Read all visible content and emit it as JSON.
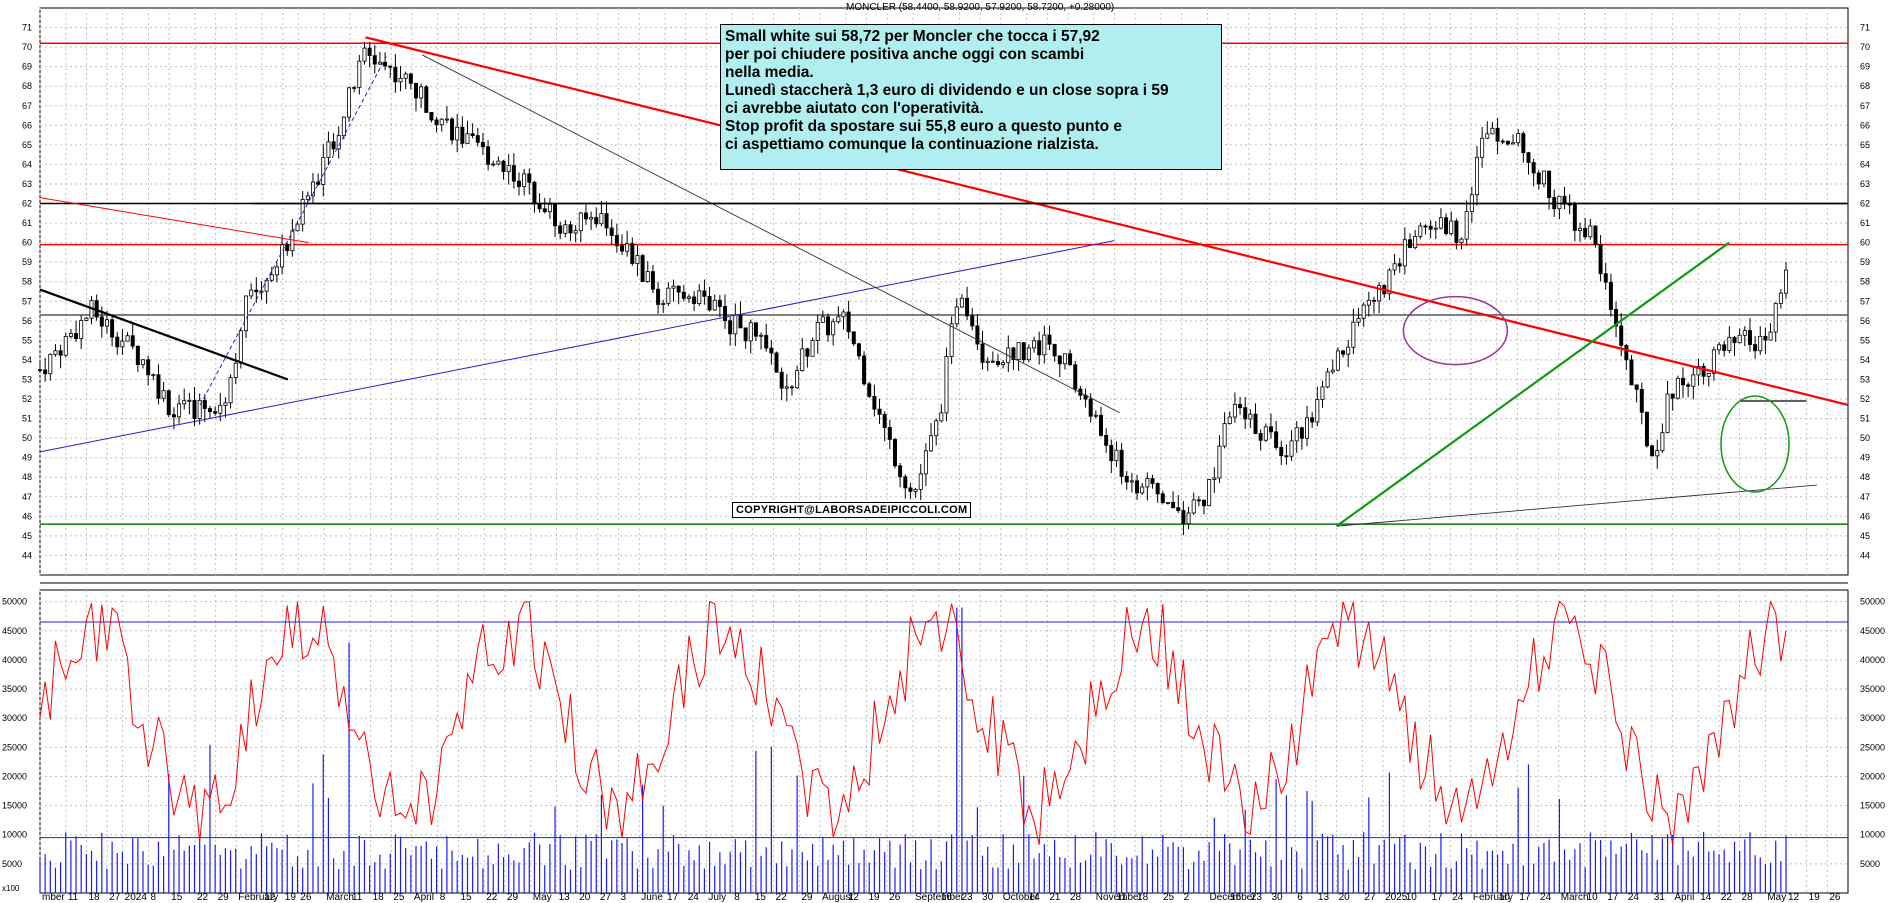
{
  "title": "MONCLER (58.4400, 58.9200, 57.9200, 58.7200, +0.28000)",
  "note_lines": [
    "Small white sui 58,72 per Moncler che tocca i 57,92",
    "per poi chiudere positiva anche oggi con scambi",
    "nella media.",
    "Lunedì staccherà 1,3 euro di dividendo e un close sopra i 59",
    "ci avrebbe aiutato con l'operatività.",
    "Stop profit da spostare sui 55,8 euro a questo punto e",
    "ci aspettiamo comunque la continuazione rialzista."
  ],
  "copyright": "COPYRIGHT@LABORSADEIPICCOLI.COM",
  "colors": {
    "up": "#ffffff",
    "down": "#000000",
    "volume": "#1a1aff",
    "oscillator": "#ff0000",
    "grid": "#c0c0c0"
  },
  "chart_data": {
    "type": "candlestick",
    "price_ylim": [
      43,
      72
    ],
    "price_ticks": [
      44,
      45,
      46,
      47,
      48,
      49,
      50,
      51,
      52,
      53,
      54,
      55,
      56,
      57,
      58,
      59,
      60,
      61,
      62,
      63,
      64,
      65,
      66,
      67,
      68,
      69,
      70,
      71
    ],
    "volume_ylim": [
      0,
      52000
    ],
    "volume_ticks": [
      5000,
      10000,
      15000,
      20000,
      25000,
      30000,
      35000,
      40000,
      45000,
      50000
    ],
    "volume_unit_label": "x100",
    "x_ticks": [
      "mber",
      "11",
      "18",
      "27",
      "2024",
      "8",
      "15",
      "22",
      "29",
      "February",
      "12",
      "19",
      "26",
      "March",
      "11",
      "18",
      "25",
      "April",
      "8",
      "15",
      "22",
      "29",
      "May",
      "13",
      "20",
      "27",
      "3",
      "June",
      "17",
      "24",
      "July",
      "8",
      "15",
      "22",
      "29",
      "August",
      "12",
      "19",
      "26",
      "September",
      "16",
      "23",
      "30",
      "October",
      "14",
      "21",
      "28",
      "November",
      "11",
      "18",
      "25",
      "2",
      "December",
      "16",
      "23",
      "30",
      "6",
      "13",
      "20",
      "27",
      "2025",
      "10",
      "17",
      "24",
      "February",
      "10",
      "17",
      "24",
      "March",
      "10",
      "17",
      "24",
      "31",
      "April",
      "14",
      "22",
      "28",
      "May",
      "12",
      "19",
      "26"
    ],
    "x_tick_positions": [
      0,
      0.5,
      0.9,
      1.3,
      1.6,
      2.1,
      2.5,
      3.0,
      3.4,
      3.8,
      4.3,
      4.7,
      5.0,
      5.5,
      6.0,
      6.4,
      6.8,
      7.2,
      7.7,
      8.1,
      8.6,
      9.0,
      9.5,
      10.0,
      10.4,
      10.8,
      11.2,
      11.6,
      12.1,
      12.5,
      12.9,
      13.4,
      13.8,
      14.2,
      14.7,
      15.1,
      15.6,
      16.0,
      16.4,
      16.9,
      17.4,
      17.8,
      18.2,
      18.6,
      19.1,
      19.5,
      19.9,
      20.4,
      20.8,
      21.2,
      21.7,
      22.1,
      22.6,
      23.0,
      23.4,
      23.8,
      24.3,
      24.7,
      25.1,
      25.6,
      26.0,
      26.4,
      26.9,
      27.3,
      27.7,
      28.2,
      28.6,
      29.0,
      29.4,
      29.9,
      30.3,
      30.7,
      31.2,
      31.6,
      32.1,
      32.5,
      32.9,
      33.4,
      33.8,
      34.2,
      34.6
    ],
    "horizontal_levels": [
      {
        "value": 70.2,
        "color": "#ff0000"
      },
      {
        "value": 62.0,
        "color": "#000000"
      },
      {
        "value": 59.9,
        "color": "#ff0000"
      },
      {
        "value": 56.3,
        "color": "#555555"
      },
      {
        "value": 45.6,
        "color": "#008000"
      }
    ],
    "oscillator_level": 46500,
    "volume_level": 9500,
    "candles": []
  }
}
